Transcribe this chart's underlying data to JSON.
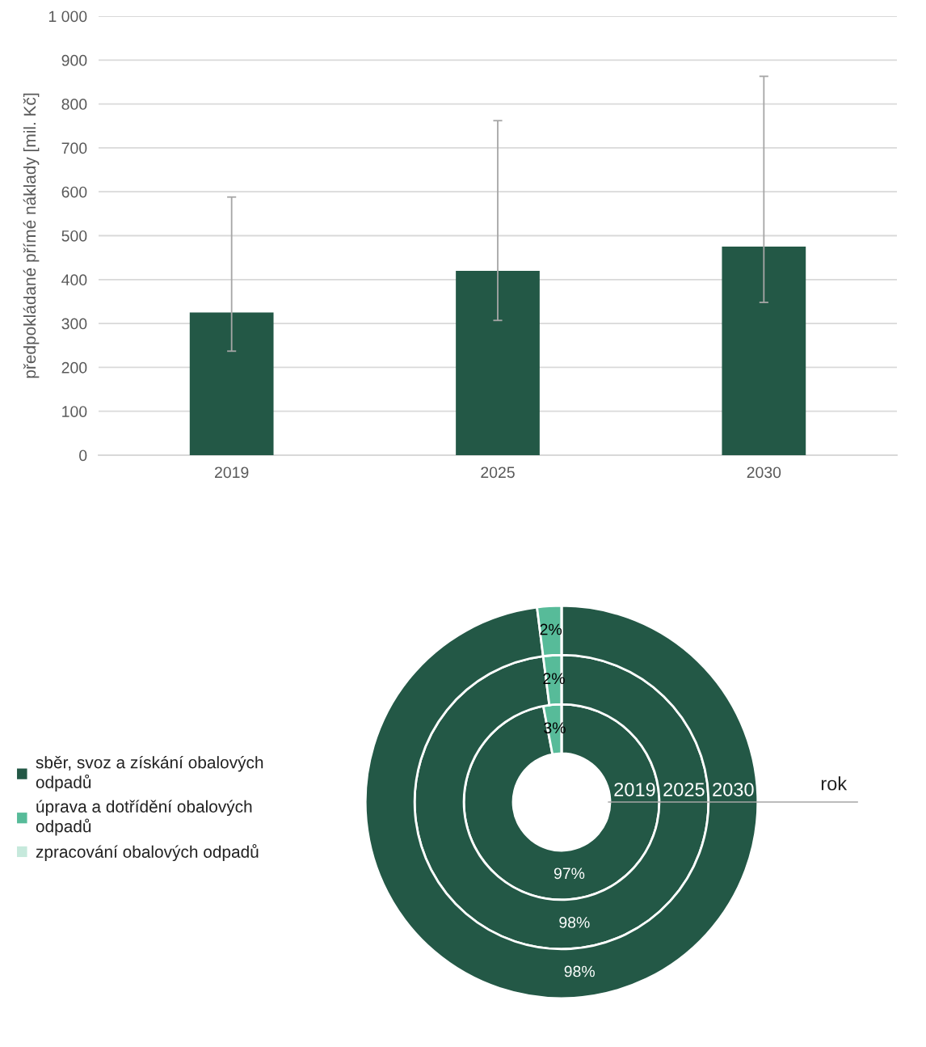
{
  "chart_data": [
    {
      "type": "bar",
      "ylabel": "předpokládané přímé náklady [mil. Kč]",
      "categories": [
        "2019",
        "2025",
        "2030"
      ],
      "values": [
        325,
        420,
        475
      ],
      "color": "#235846",
      "errors": [
        [
          237,
          588
        ],
        [
          307,
          762
        ],
        [
          348,
          863
        ]
      ],
      "ylim": [
        0,
        1000
      ],
      "yticks": [
        0,
        100,
        200,
        300,
        400,
        500,
        600,
        700,
        800,
        900,
        {
          "value": 1000,
          "label": "1 000"
        }
      ],
      "grid": "y"
    },
    {
      "type": "donut",
      "categories": [
        "sběr, svoz a získání obalových odpadů",
        "úprava a dotřídění obalových odpadů",
        "zpracování obalových odpadů"
      ],
      "colors": [
        "#235846",
        "#57bb99",
        "#c6e9dc"
      ],
      "series": [
        {
          "name": "2019",
          "values": [
            97,
            3,
            0
          ],
          "value_labels": [
            "97%",
            "3%",
            null
          ]
        },
        {
          "name": "2025",
          "values": [
            98,
            2,
            0
          ],
          "value_labels": [
            "98%",
            "2%",
            null
          ]
        },
        {
          "name": "2030",
          "values": [
            98,
            2,
            0
          ],
          "value_labels": [
            "98%",
            "2%",
            null
          ]
        }
      ],
      "legend": "left",
      "annotations": [
        "rok"
      ]
    }
  ]
}
